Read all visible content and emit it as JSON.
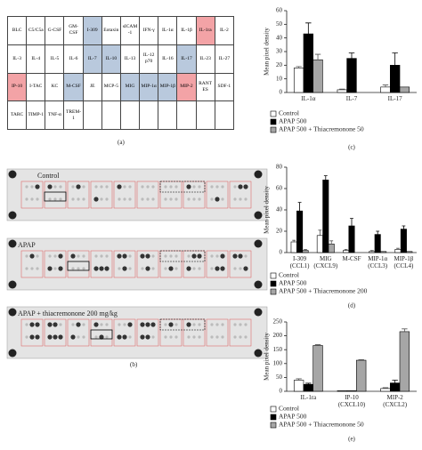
{
  "table": {
    "caption": "(a)",
    "rows": [
      [
        "BLC",
        "C5/C5a",
        "G-CSF",
        "GM-CSF",
        {
          "text": "I-309",
          "fill": "#b9c9dd"
        },
        "Eotaxin",
        "sICAM-1",
        "IFN-γ",
        "IL-1α",
        "IL-1β",
        {
          "text": "IL-1ra",
          "fill": "#f3a3a6"
        },
        "IL-2"
      ],
      [
        "IL-3",
        "IL-4",
        "IL-5",
        "IL-6",
        {
          "text": "IL-7",
          "fill": "#b9c9dd"
        },
        {
          "text": "IL-10",
          "fill": "#b9c9dd"
        },
        "IL-13",
        "IL-12 p70",
        "IL-16",
        {
          "text": "IL-17",
          "fill": "#b9c9dd"
        },
        "IL-23",
        "IL-27"
      ],
      [
        {
          "text": "IP-10",
          "fill": "#f3a3a6"
        },
        "I-TAC",
        "KC",
        {
          "text": "M-CSF",
          "fill": "#b9c9dd"
        },
        "JE",
        "MCP-5",
        {
          "text": "MIG",
          "fill": "#b9c9dd"
        },
        {
          "text": "MIP-1α",
          "fill": "#b9c9dd"
        },
        {
          "text": "MIP-1β",
          "fill": "#b9c9dd"
        },
        {
          "text": "MIP-2",
          "fill": "#f3a3a6"
        },
        "RANT ES",
        "SDF-1"
      ],
      [
        "TARC",
        "TIMP-1",
        "TNF-α",
        "TREM-1"
      ]
    ]
  },
  "blots": {
    "caption": "(b)",
    "labels": [
      "Control",
      "APAP",
      "APAP + thiacremonone 200 mg/kg"
    ]
  },
  "chart_data": [
    {
      "type": "bar",
      "caption": "(c)",
      "ylabel": "Mean pixel density",
      "categories": [
        "IL-1α",
        "IL-7",
        "IL-17"
      ],
      "ylim": [
        0,
        60
      ],
      "yticks": [
        0,
        10,
        20,
        30,
        40,
        50,
        60
      ],
      "series": [
        {
          "name": "Control",
          "color": "#ffffff",
          "values": [
            18,
            2,
            4
          ],
          "errors": [
            1,
            0.5,
            1.5
          ]
        },
        {
          "name": "APAP 500",
          "color": "#000000",
          "values": [
            43,
            25,
            20
          ],
          "errors": [
            8,
            4,
            9
          ]
        },
        {
          "name": "APAP 500 + Thiacremonone 50",
          "color": "#a6a6a6",
          "values": [
            24,
            0,
            4
          ],
          "errors": [
            4,
            null,
            null
          ]
        }
      ]
    },
    {
      "type": "bar",
      "caption": "(d)",
      "ylabel": "Mean pixel density",
      "categories": [
        "I-309\n(CCL1)",
        "MIG\n(CXCL9)",
        "M-CSF",
        "MIP-1α\n(CCL3)",
        "MIP-1β\n(CCL4)"
      ],
      "ylim": [
        0,
        80
      ],
      "yticks": [
        0,
        20,
        40,
        60,
        80
      ],
      "series": [
        {
          "name": "Control",
          "color": "#ffffff",
          "values": [
            10,
            16,
            2,
            1,
            3
          ],
          "errors": [
            1.5,
            5,
            1,
            1,
            1
          ]
        },
        {
          "name": "APAP 500",
          "color": "#000000",
          "values": [
            39,
            68,
            25,
            17,
            22
          ],
          "errors": [
            8,
            4,
            7,
            3,
            3
          ]
        },
        {
          "name": "APAP 500 + Thiacremonone 200",
          "color": "#a6a6a6",
          "values": [
            2,
            8,
            0,
            1,
            1
          ],
          "errors": [
            1,
            3,
            null,
            null,
            null
          ]
        }
      ]
    },
    {
      "type": "bar",
      "caption": "(e)",
      "ylabel": "Mean pixel density",
      "categories": [
        "IL-1ra",
        "IP-10\n(CXCL10)",
        "MIP-2\n(CXCL2)"
      ],
      "ylim": [
        0,
        250
      ],
      "yticks": [
        0,
        50,
        100,
        150,
        200,
        250
      ],
      "series": [
        {
          "name": "Control",
          "color": "#ffffff",
          "values": [
            40,
            2,
            10
          ],
          "errors": [
            5,
            null,
            3
          ]
        },
        {
          "name": "APAP 500",
          "color": "#000000",
          "values": [
            25,
            2,
            30
          ],
          "errors": [
            4,
            null,
            10
          ]
        },
        {
          "name": "APAP 500 + Thiacremonone 50",
          "color": "#a6a6a6",
          "values": [
            165,
            112,
            215
          ],
          "errors": [
            3,
            2,
            10
          ]
        }
      ]
    }
  ]
}
